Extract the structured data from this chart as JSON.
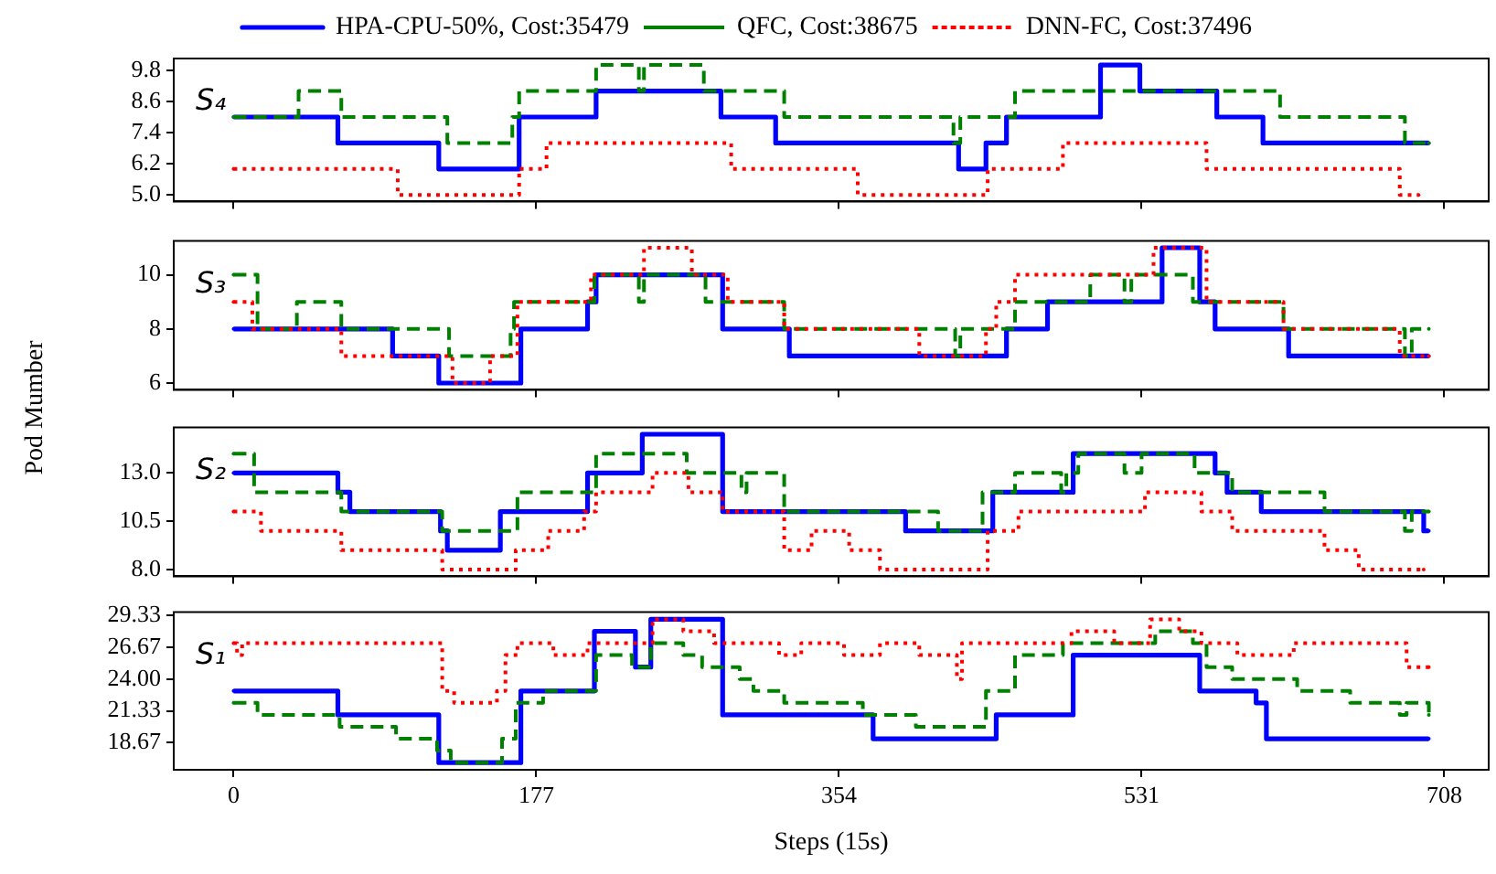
{
  "chart_data": [
    {
      "type": "step",
      "annotations": [
        "S₄"
      ],
      "legend": "top",
      "xlim": [
        -35,
        734
      ],
      "xticks": [
        0,
        177,
        354,
        531,
        708
      ],
      "ylim": [
        4.75,
        10.25
      ],
      "yticks": [
        {
          "value": 5,
          "label": "5.0"
        },
        6.2,
        7.4,
        8.6,
        9.8
      ],
      "tick_labels": "y",
      "series": [
        {
          "name": "HPA-CPU-50%, Cost:35479",
          "color": "#0000ff",
          "line_style": "solid",
          "x": [
            0,
            61,
            120,
            167,
            212,
            285,
            317,
            424,
            440,
            452,
            507,
            530,
            575,
            602,
            699
          ],
          "values": [
            8,
            7,
            6,
            8,
            9,
            8,
            7,
            6,
            7,
            8,
            10,
            9,
            8,
            7,
            7
          ]
        },
        {
          "name": "QFC, Cost:38675",
          "color": "#008000",
          "line_style": "dashed",
          "x": [
            0,
            38,
            63,
            125,
            163,
            167,
            212,
            237,
            240,
            275,
            322,
            421,
            425,
            457,
            612,
            685,
            699
          ],
          "values": [
            8,
            9,
            8,
            7,
            8,
            9,
            10,
            9,
            10,
            9,
            8,
            7,
            8,
            9,
            8,
            7,
            7
          ]
        },
        {
          "name": "DNN-FC, Cost:37496",
          "color": "#ff0000",
          "line_style": "dotted",
          "x": [
            0,
            96,
            167,
            183,
            291,
            365,
            441,
            485,
            569,
            682,
            693
          ],
          "values": [
            6,
            5,
            6,
            7,
            6,
            5,
            6,
            7,
            6,
            5,
            5
          ]
        }
      ]
    },
    {
      "type": "step",
      "annotations": [
        "S₃"
      ],
      "ylabel": "Pod Mumber",
      "xlim": [
        -35,
        734
      ],
      "xticks": [
        0,
        177,
        354,
        531,
        708
      ],
      "ylim": [
        5.75,
        11.25
      ],
      "yticks": [
        6,
        8,
        10
      ],
      "tick_labels": "y",
      "series": [
        {
          "color": "#0000ff",
          "line_style": "solid",
          "x": [
            0,
            93,
            120,
            168,
            207,
            212,
            286,
            325,
            452,
            476,
            543,
            565,
            574,
            617,
            699
          ],
          "values": [
            8,
            7,
            6,
            8,
            9,
            10,
            8,
            7,
            8,
            9,
            11,
            9,
            8,
            7,
            7
          ]
        },
        {
          "color": "#008000",
          "line_style": "dashed",
          "x": [
            0,
            14,
            37,
            63,
            126,
            162,
            164,
            211,
            237,
            240,
            276,
            322,
            422,
            425,
            457,
            501,
            521,
            525,
            561,
            614,
            685,
            689,
            699
          ],
          "values": [
            10,
            8,
            9,
            8,
            7,
            8,
            9,
            10,
            9,
            10,
            9,
            8,
            7,
            8,
            9,
            10,
            9,
            10,
            9,
            8,
            7,
            8,
            8
          ]
        },
        {
          "color": "#ff0000",
          "line_style": "dotted",
          "x": [
            0,
            11,
            63,
            128,
            150,
            166,
            209,
            240,
            268,
            289,
            322,
            401,
            440,
            446,
            457,
            538,
            569,
            614,
            682,
            699
          ],
          "values": [
            9,
            8,
            7,
            6,
            7,
            9,
            10,
            11,
            10,
            9,
            8,
            7,
            8,
            9,
            10,
            11,
            9,
            8,
            7,
            7
          ]
        }
      ]
    },
    {
      "type": "step",
      "annotations": [
        "S₂"
      ],
      "xlim": [
        -35,
        734
      ],
      "xticks": [
        0,
        177,
        354,
        531,
        708
      ],
      "ylim": [
        7.65,
        15.35
      ],
      "yticks": [
        {
          "value": 8,
          "label": "8.0"
        },
        10.5,
        {
          "value": 13,
          "label": "13.0"
        }
      ],
      "tick_labels": "y",
      "series": [
        {
          "color": "#0000ff",
          "line_style": "solid",
          "x": [
            0,
            61,
            68,
            121,
            125,
            156,
            207,
            239,
            286,
            393,
            444,
            491,
            574,
            581,
            601,
            696,
            699
          ],
          "values": [
            13,
            12,
            11,
            10,
            9,
            11,
            13,
            15,
            11,
            10,
            12,
            14,
            13,
            12,
            11,
            10,
            10
          ]
        },
        {
          "color": "#008000",
          "line_style": "dashed",
          "x": [
            0,
            12,
            63,
            122,
            166,
            212,
            265,
            297,
            300,
            322,
            412,
            438,
            457,
            484,
            487,
            494,
            521,
            531,
            562,
            584,
            638,
            685,
            689,
            699
          ],
          "values": [
            14,
            12,
            11,
            10,
            12,
            14,
            13,
            12,
            13,
            11,
            10,
            12,
            13,
            12,
            13,
            14,
            13,
            14,
            13,
            12,
            11,
            10,
            11,
            11
          ]
        },
        {
          "color": "#ff0000",
          "line_style": "dotted",
          "x": [
            0,
            16,
            63,
            122,
            165,
            184,
            205,
            212,
            245,
            266,
            286,
            322,
            338,
            360,
            378,
            441,
            459,
            533,
            566,
            584,
            638,
            658,
            696
          ],
          "values": [
            11,
            10,
            9,
            8,
            9,
            10,
            11,
            12,
            13,
            12,
            11,
            9,
            10,
            9,
            8,
            10,
            11,
            12,
            11,
            10,
            9,
            8,
            8
          ]
        }
      ]
    },
    {
      "type": "step",
      "annotations": [
        "S₁"
      ],
      "xlabel": "Steps (15s)",
      "xlim": [
        -35,
        734
      ],
      "xticks": [
        0,
        177,
        354,
        531,
        708
      ],
      "ylim": [
        16.4,
        29.6
      ],
      "yticks": [
        18.67,
        21.33,
        {
          "value": 24,
          "label": "24.00"
        },
        26.67,
        29.33
      ],
      "series": [
        {
          "color": "#0000ff",
          "line_style": "solid",
          "x": [
            0,
            61,
            120,
            168,
            211,
            235,
            244,
            286,
            374,
            446,
            491,
            565,
            598,
            604,
            699
          ],
          "values": [
            23,
            21,
            17,
            23,
            28,
            25,
            29,
            21,
            19,
            21,
            26,
            23,
            22,
            19,
            19
          ]
        },
        {
          "color": "#008000",
          "line_style": "dashed",
          "x": [
            0,
            14,
            62,
            95,
            119,
            127,
            157,
            165,
            181,
            212,
            233,
            244,
            263,
            274,
            296,
            304,
            322,
            368,
            399,
            440,
            457,
            485,
            539,
            561,
            569,
            584,
            622,
            653,
            682,
            686,
            699
          ],
          "values": [
            22,
            21,
            20,
            19,
            18,
            17,
            19,
            22,
            23,
            26,
            25,
            27,
            26,
            25,
            24,
            23,
            22,
            21,
            20,
            23,
            26,
            27,
            28,
            27,
            25,
            24,
            23,
            22,
            21,
            22,
            21
          ]
        },
        {
          "color": "#ff0000",
          "line_style": "dotted",
          "x": [
            0,
            2,
            5,
            122,
            129,
            154,
            159,
            166,
            187,
            207,
            245,
            263,
            281,
            319,
            332,
            357,
            378,
            401,
            423,
            426,
            490,
            515,
            536,
            553,
            566,
            587,
            620,
            686,
            699
          ],
          "values": [
            27,
            26,
            27,
            23,
            22,
            23,
            26,
            27,
            26,
            27,
            29,
            28,
            27,
            26,
            27,
            26,
            27,
            26,
            24,
            27,
            28,
            27,
            29,
            28,
            27,
            26,
            27,
            25,
            25
          ]
        }
      ]
    }
  ]
}
